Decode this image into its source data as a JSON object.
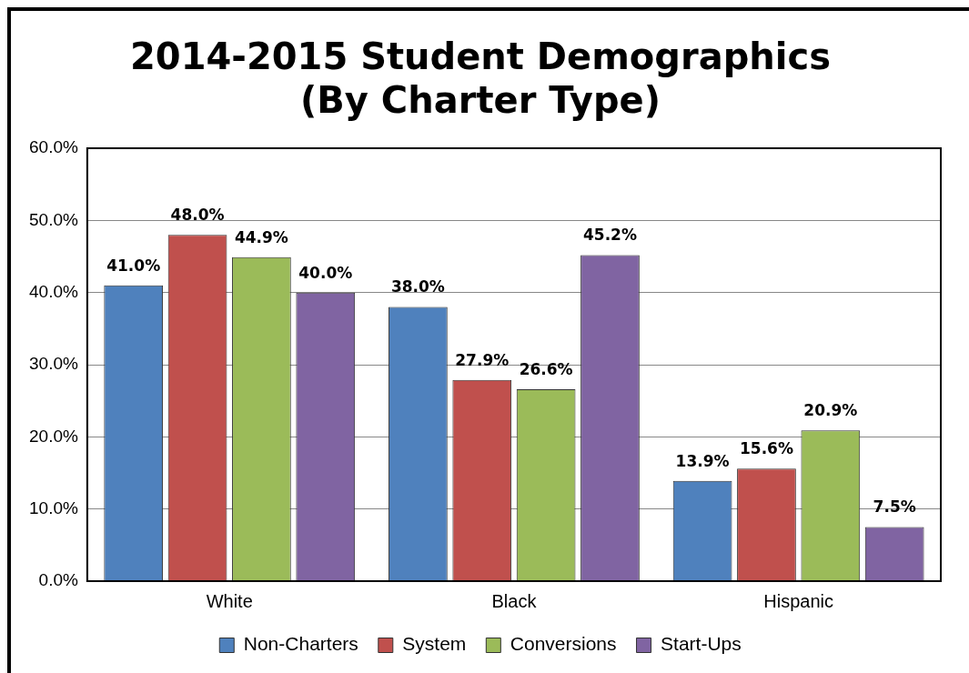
{
  "chart_data": {
    "type": "bar",
    "title": [
      "2014-2015 Student Demographics",
      "(By Charter Type)"
    ],
    "categories": [
      "White",
      "Black",
      "Hispanic"
    ],
    "series": [
      {
        "name": "Non-Charters",
        "color": "#4f81bd",
        "values": [
          41.0,
          38.0,
          13.9
        ],
        "value_labels": [
          "41.0%",
          "38.0%",
          "13.9%"
        ]
      },
      {
        "name": "System",
        "color": "#c0504d",
        "values": [
          48.0,
          27.9,
          15.6
        ],
        "value_labels": [
          "48.0%",
          "27.9%",
          "15.6%"
        ]
      },
      {
        "name": "Conversions",
        "color": "#9bbb59",
        "values": [
          44.9,
          26.6,
          20.9
        ],
        "value_labels": [
          "44.9%",
          "26.6%",
          "20.9%"
        ]
      },
      {
        "name": "Start-Ups",
        "color": "#8064a2",
        "values": [
          40.0,
          45.2,
          7.5
        ],
        "value_labels": [
          "40.0%",
          "45.2%",
          "7.5%"
        ]
      }
    ],
    "ylim": [
      0,
      60
    ],
    "yticks": [
      {
        "value": 0,
        "label": "0.0%"
      },
      {
        "value": 10,
        "label": "10.0%"
      },
      {
        "value": 20,
        "label": "20.0%"
      },
      {
        "value": 30,
        "label": "30.0%"
      },
      {
        "value": 40,
        "label": "40.0%"
      },
      {
        "value": 50,
        "label": "50.0%"
      },
      {
        "value": 60,
        "label": "60.0%"
      }
    ],
    "grid": "y",
    "legend": "bottom"
  }
}
